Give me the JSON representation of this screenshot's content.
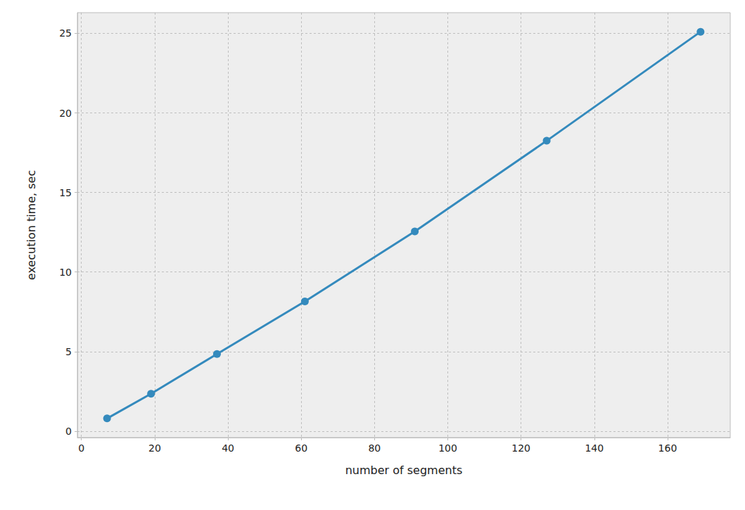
{
  "chart_data": {
    "type": "line",
    "x_label": "number of segments",
    "y_label": "execution time, sec",
    "x": [
      7,
      19,
      37,
      61,
      91,
      127,
      169
    ],
    "values": [
      0.8,
      2.35,
      4.85,
      8.15,
      12.55,
      18.25,
      25.1
    ],
    "color": "#348ABD",
    "marker": "circle",
    "line_style": "solid",
    "xlim": [
      -1.1,
      177.1
    ],
    "xticks": [
      0,
      20,
      40,
      60,
      80,
      100,
      120,
      140,
      160
    ],
    "ylim": [
      -0.4,
      26.3
    ],
    "yticks": [
      0,
      5,
      10,
      15,
      20,
      25
    ],
    "grid": true
  }
}
